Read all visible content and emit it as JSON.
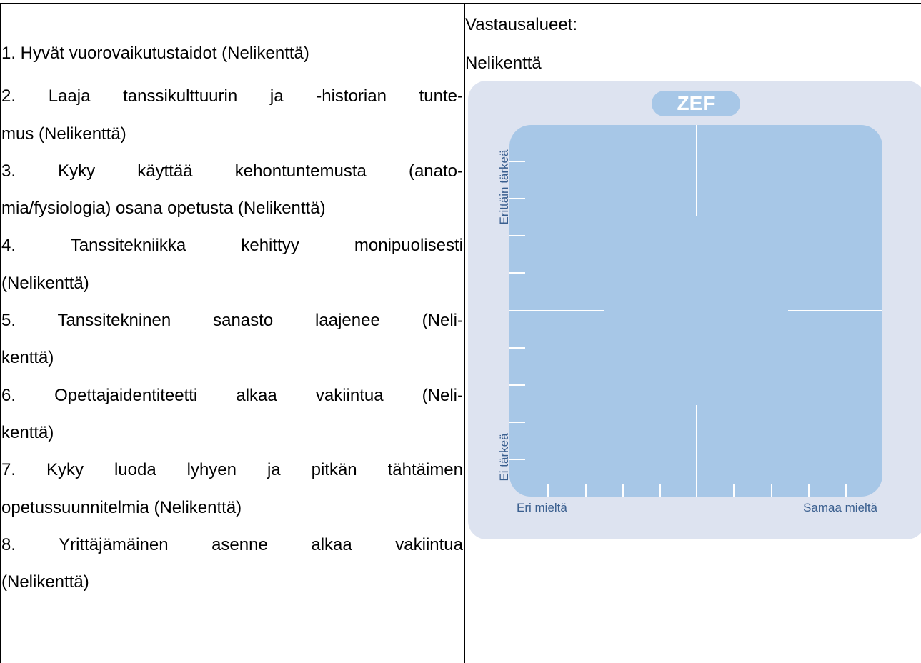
{
  "left_column": {
    "items": [
      [
        "1. Hyvät vuorovaikutustaidot  (Nelikenttä)"
      ],
      [
        "2. Laaja tanssikulttuurin ja -historian tunte-",
        "mus  (Nelikenttä)"
      ],
      [
        "3. Kyky käyttää kehontuntemusta (anato-",
        "mia/fysiologia) osana opetusta  (Nelikenttä)"
      ],
      [
        "4. Tanssitekniikka kehittyy monipuolisesti",
        "(Nelikenttä)"
      ],
      [
        "5. Tanssitekninen sanasto laajenee  (Neli-",
        "kenttä)"
      ],
      [
        "6. Opettajaidentiteetti alkaa vakiintua  (Neli-",
        "kenttä)"
      ],
      [
        "7. Kyky luoda lyhyen ja pitkän tähtäimen",
        "opetussuunnitelmia  (Nelikenttä)"
      ],
      [
        "8. Yrittäjämäinen asenne alkaa vakiintua",
        "(Nelikenttä)"
      ]
    ]
  },
  "right_column": {
    "heading": "Vastausalueet:",
    "type": "Nelikenttä",
    "diagram": {
      "logo": "ZEF",
      "y_top": "Erittäin tärkeä",
      "y_bottom": "Ei tärkeä",
      "x_left": "Eri mieltä",
      "x_right": "Samaa mieltä"
    }
  }
}
